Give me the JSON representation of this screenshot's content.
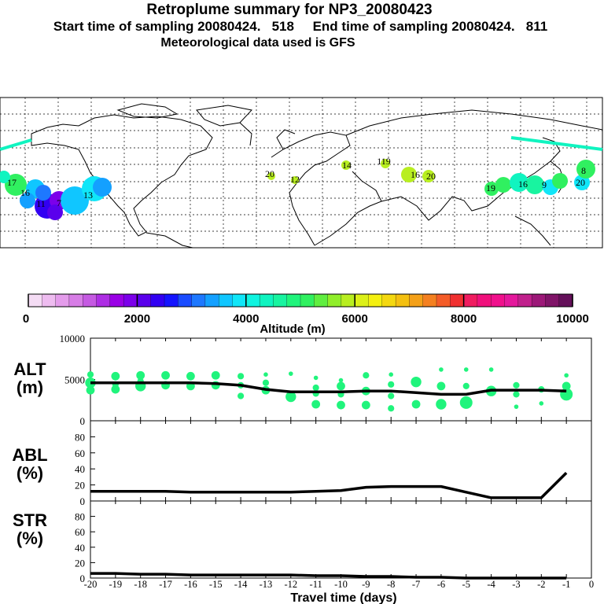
{
  "header": {
    "title": "Retroplume summary for NP3_20080423",
    "sampling": "Start time of sampling 20080424.   518     End time of sampling 20080424.   811",
    "met": "Meteorological data used is GFS"
  },
  "colorbar": {
    "ticks": [
      "0",
      "2000",
      "4000",
      "6000",
      "8000",
      "10000"
    ],
    "label": "Altitude (m)",
    "colors": [
      "#f4dcf4",
      "#eebcf0",
      "#e49ceb",
      "#d77de6",
      "#c55ae2",
      "#ae2ee4",
      "#9a00e6",
      "#7c00ea",
      "#5a00ec",
      "#3200f2",
      "#1414ff",
      "#1a4cff",
      "#1e78ff",
      "#14a0ff",
      "#10c6ff",
      "#10e6f8",
      "#10f4e0",
      "#10f4c0",
      "#18f4a0",
      "#20f47c",
      "#30f060",
      "#60ee40",
      "#90ee2a",
      "#b8ee20",
      "#dcf018",
      "#f4f010",
      "#f4d810",
      "#f4c010",
      "#f4a018",
      "#f48020",
      "#f45c28",
      "#f03030",
      "#f01c60",
      "#f0107c",
      "#f0108c",
      "#e4189c",
      "#c0208c",
      "#9c1878",
      "#801468",
      "#64105a"
    ]
  },
  "map": {
    "labels": [
      {
        "t": "17",
        "c": "#30f060"
      },
      {
        "t": "16",
        "c": "#30f060"
      },
      {
        "t": "11",
        "c": "#14a0ff"
      },
      {
        "t": "7",
        "c": "#3200f2"
      },
      {
        "t": "13",
        "c": "#10c6ff"
      },
      {
        "t": "20",
        "c": "#b8ee20"
      },
      {
        "t": "12",
        "c": "#b8ee20"
      },
      {
        "t": "14",
        "c": "#b8ee20"
      },
      {
        "t": "119",
        "c": "#b8ee20"
      },
      {
        "t": "16",
        "c": "#b8ee20"
      },
      {
        "t": "20",
        "c": "#30f060"
      },
      {
        "t": "19",
        "c": "#10f4c0"
      },
      {
        "t": "16",
        "c": "#10e6f8"
      },
      {
        "t": "9",
        "c": "#30f060"
      },
      {
        "t": "20",
        "c": "#10e6f8"
      },
      {
        "t": "8",
        "c": "#30f060"
      }
    ]
  },
  "panels": {
    "alt": {
      "line1": "ALT",
      "line2": "(m)"
    },
    "abl": {
      "line1": "ABL",
      "line2": "(%)"
    },
    "str": {
      "line1": "STR",
      "line2": "(%)"
    }
  },
  "xaxis_label": "Travel time (days)",
  "chart_data": [
    {
      "type": "line",
      "name": "ALT",
      "ylabel": "ALT (m)",
      "ylim": [
        0,
        10000
      ],
      "yticks": [
        "0",
        "5000",
        "10000"
      ],
      "x": [
        -20,
        -19,
        -18,
        -17,
        -16,
        -15,
        -14,
        -13,
        -12,
        -11,
        -10,
        -9,
        -8,
        -7,
        -6,
        -5,
        -4,
        -3,
        -2,
        -1
      ],
      "values": [
        4600,
        4600,
        4600,
        4600,
        4600,
        4500,
        4300,
        3800,
        3500,
        3500,
        3500,
        3600,
        3600,
        3400,
        3200,
        3200,
        3700,
        3700,
        3700,
        3600
      ],
      "scatter_points": [
        {
          "x": -20,
          "y": 5600,
          "s": 2
        },
        {
          "x": -20,
          "y": 4600,
          "s": 4
        },
        {
          "x": -20,
          "y": 3700,
          "s": 3
        },
        {
          "x": -19,
          "y": 5400,
          "s": 3
        },
        {
          "x": -19,
          "y": 4400,
          "s": 2
        },
        {
          "x": -19,
          "y": 3800,
          "s": 3
        },
        {
          "x": -18,
          "y": 5500,
          "s": 3
        },
        {
          "x": -18,
          "y": 4800,
          "s": 2
        },
        {
          "x": -18,
          "y": 4200,
          "s": 4
        },
        {
          "x": -17,
          "y": 5500,
          "s": 3
        },
        {
          "x": -17,
          "y": 4300,
          "s": 3
        },
        {
          "x": -16,
          "y": 5400,
          "s": 3
        },
        {
          "x": -16,
          "y": 4200,
          "s": 3
        },
        {
          "x": -15,
          "y": 5500,
          "s": 3
        },
        {
          "x": -15,
          "y": 4300,
          "s": 3
        },
        {
          "x": -14,
          "y": 5400,
          "s": 2
        },
        {
          "x": -14,
          "y": 4300,
          "s": 2
        },
        {
          "x": -14,
          "y": 3000,
          "s": 2
        },
        {
          "x": -13,
          "y": 5600,
          "s": 1
        },
        {
          "x": -13,
          "y": 4600,
          "s": 2
        },
        {
          "x": -13,
          "y": 3700,
          "s": 3
        },
        {
          "x": -12,
          "y": 5700,
          "s": 1
        },
        {
          "x": -12,
          "y": 2900,
          "s": 4
        },
        {
          "x": -11,
          "y": 5200,
          "s": 1
        },
        {
          "x": -11,
          "y": 4000,
          "s": 2
        },
        {
          "x": -11,
          "y": 3300,
          "s": 2
        },
        {
          "x": -11,
          "y": 2000,
          "s": 3
        },
        {
          "x": -10,
          "y": 4900,
          "s": 1
        },
        {
          "x": -10,
          "y": 4200,
          "s": 3
        },
        {
          "x": -10,
          "y": 3200,
          "s": 2
        },
        {
          "x": -10,
          "y": 1900,
          "s": 3
        },
        {
          "x": -9,
          "y": 5500,
          "s": 2
        },
        {
          "x": -9,
          "y": 3600,
          "s": 3
        },
        {
          "x": -9,
          "y": 1900,
          "s": 3
        },
        {
          "x": -8,
          "y": 5600,
          "s": 1
        },
        {
          "x": -8,
          "y": 4400,
          "s": 2
        },
        {
          "x": -8,
          "y": 3000,
          "s": 2
        },
        {
          "x": -8,
          "y": 1500,
          "s": 2
        },
        {
          "x": -7,
          "y": 4700,
          "s": 4
        },
        {
          "x": -7,
          "y": 2000,
          "s": 3
        },
        {
          "x": -6,
          "y": 6200,
          "s": 1
        },
        {
          "x": -6,
          "y": 4200,
          "s": 3
        },
        {
          "x": -6,
          "y": 2000,
          "s": 4
        },
        {
          "x": -5,
          "y": 6200,
          "s": 1
        },
        {
          "x": -5,
          "y": 4200,
          "s": 2
        },
        {
          "x": -5,
          "y": 2200,
          "s": 5
        },
        {
          "x": -4,
          "y": 6200,
          "s": 1
        },
        {
          "x": -4,
          "y": 3600,
          "s": 4
        },
        {
          "x": -3,
          "y": 4300,
          "s": 2
        },
        {
          "x": -3,
          "y": 3200,
          "s": 2
        },
        {
          "x": -3,
          "y": 1700,
          "s": 1
        },
        {
          "x": -2,
          "y": 3800,
          "s": 2
        },
        {
          "x": -2,
          "y": 2100,
          "s": 1
        },
        {
          "x": -1,
          "y": 5500,
          "s": 1
        },
        {
          "x": -1,
          "y": 4200,
          "s": 3
        },
        {
          "x": -1,
          "y": 3200,
          "s": 5
        }
      ]
    },
    {
      "type": "line",
      "name": "ABL",
      "ylabel": "ABL (%)",
      "ylim": [
        0,
        100
      ],
      "yticks": [
        "0",
        "20",
        "40",
        "60",
        "80"
      ],
      "x": [
        -20,
        -19,
        -18,
        -17,
        -16,
        -15,
        -14,
        -13,
        -12,
        -11,
        -10,
        -9,
        -8,
        -7,
        -6,
        -5,
        -4,
        -3,
        -2,
        -1
      ],
      "values": [
        12,
        12,
        12,
        12,
        11,
        11,
        11,
        11,
        11,
        12,
        13,
        17,
        18,
        18,
        18,
        11,
        4,
        4,
        4,
        35
      ]
    },
    {
      "type": "line",
      "name": "STR",
      "ylabel": "STR (%)",
      "ylim": [
        0,
        100
      ],
      "yticks": [
        "0",
        "20",
        "40",
        "60",
        "80"
      ],
      "x": [
        -20,
        -19,
        -18,
        -17,
        -16,
        -15,
        -14,
        -13,
        -12,
        -11,
        -10,
        -9,
        -8,
        -7,
        -6,
        -5,
        -4,
        -3,
        -2,
        -1
      ],
      "values": [
        6,
        6,
        5,
        5,
        4,
        4,
        4,
        4,
        4,
        3,
        3,
        2,
        2,
        1,
        1,
        0,
        0,
        0,
        0,
        0
      ],
      "xticks": [
        "-20",
        "-19",
        "-18",
        "-17",
        "-16",
        "-15",
        "-14",
        "-13",
        "-12",
        "-11",
        "-10",
        "-9",
        "-8",
        "-7",
        "-6",
        "-5",
        "-4",
        "-3",
        "-2",
        "-1",
        "0"
      ],
      "xlabel": "Travel time (days)"
    }
  ]
}
